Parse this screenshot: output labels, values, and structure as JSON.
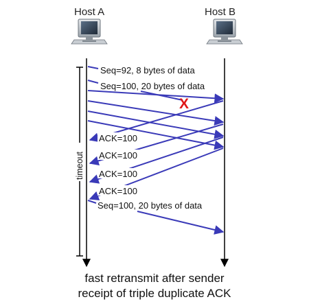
{
  "hosts": {
    "a": {
      "label": "Host A",
      "icon": "desktop-computer-icon"
    },
    "b": {
      "label": "Host B",
      "icon": "desktop-computer-icon"
    }
  },
  "timeout_label": "timeout",
  "messages": {
    "seq92": "Seq=92, 8 bytes of data",
    "seq100": "Seq=100, 20 bytes of data",
    "ack1": "ACK=100",
    "ack2": "ACK=100",
    "ack3": "ACK=100",
    "ack4": "ACK=100",
    "retransmit": "Seq=100, 20 bytes of data"
  },
  "loss_marker": "X",
  "caption": {
    "line1": "fast retransmit after sender",
    "line2": "receipt of triple duplicate ACK"
  },
  "colors": {
    "arrow": "#3a3ab8",
    "loss": "#e01818",
    "timeline": "#000000",
    "text": "#111111"
  }
}
